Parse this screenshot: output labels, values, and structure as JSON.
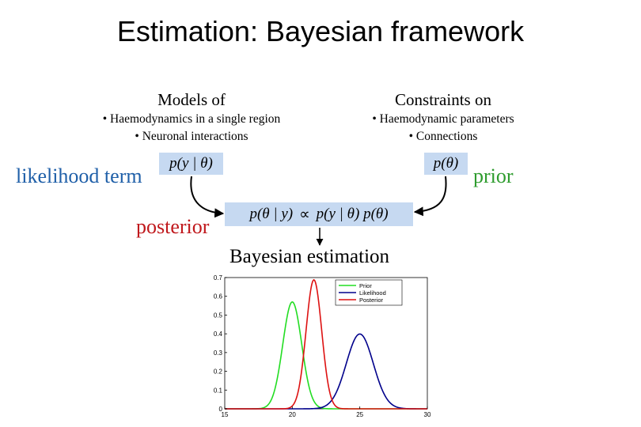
{
  "title": "Estimation: Bayesian framework",
  "models": {
    "heading": "Models of",
    "items": [
      "• Haemodynamics in a single region",
      "• Neuronal interactions"
    ]
  },
  "constraints": {
    "heading": "Constraints on",
    "items": [
      "• Haemodynamic parameters",
      "• Connections"
    ]
  },
  "labels": {
    "likelihood": "likelihood term",
    "prior": "prior",
    "posterior": "posterior",
    "estimation": "Bayesian estimation"
  },
  "formulas": {
    "likelihood": "p(y | θ)",
    "prior": "p(θ)",
    "posterior_lhs": "p(θ | y)",
    "proportional": "∝",
    "posterior_rhs": "p(y | θ) p(θ)"
  },
  "colors": {
    "likelihood_label": "#1f5fa8",
    "prior_label": "#2e9c2e",
    "posterior_label": "#c0181c",
    "formula_bg": "#c6d9f1"
  },
  "chart_data": {
    "type": "line",
    "xlim": [
      15,
      30
    ],
    "ylim": [
      0,
      0.7
    ],
    "x_ticks": [
      "15",
      "20",
      "25",
      "30"
    ],
    "y_ticks": [
      "0",
      "0.1",
      "0.2",
      "0.3",
      "0.4",
      "0.5",
      "0.6",
      "0.7"
    ],
    "legend_position": "top-right",
    "series": [
      {
        "name": "Prior",
        "color": "#22dd22",
        "mean": 20,
        "sd": 0.7
      },
      {
        "name": "Likelihood",
        "color": "#00008b",
        "mean": 25,
        "sd": 1.0
      },
      {
        "name": "Posterior",
        "color": "#dd1111",
        "mean": 21.6,
        "sd": 0.58
      }
    ]
  }
}
